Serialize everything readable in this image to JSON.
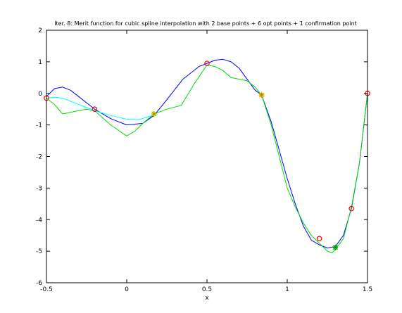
{
  "chart_data": {
    "type": "line",
    "title": "Iter. 8: Merit function for cubic spline interpolation with 2 base points + 6 opt points + 1 confirmation point",
    "xlabel": "x",
    "ylabel": "",
    "xlim": [
      -0.5,
      1.5
    ],
    "ylim": [
      -6,
      2
    ],
    "xticks": [
      "-0.5",
      "0",
      "0.5",
      "1",
      "1.5"
    ],
    "yticks": [
      "2",
      "1",
      "0",
      "-1",
      "-2",
      "-3",
      "-4",
      "-5",
      "-6"
    ],
    "grid": false,
    "legend": "none",
    "series": [
      {
        "color": "#0000ff",
        "x": [
          -0.5,
          -0.45,
          -0.4,
          -0.35,
          -0.3,
          -0.25,
          -0.2,
          -0.1,
          0.0,
          0.1,
          0.17,
          0.25,
          0.35,
          0.45,
          0.5,
          0.55,
          0.6,
          0.65,
          0.7,
          0.75,
          0.8,
          0.84,
          0.9,
          0.95,
          1.0,
          1.05,
          1.1,
          1.15,
          1.2,
          1.25,
          1.3,
          1.35,
          1.4,
          1.45,
          1.5
        ],
        "y": [
          -0.1,
          0.15,
          0.2,
          0.1,
          -0.1,
          -0.3,
          -0.5,
          -0.8,
          -1.0,
          -0.95,
          -0.7,
          -0.2,
          0.45,
          0.85,
          0.95,
          1.05,
          1.08,
          1.0,
          0.8,
          0.45,
          0.1,
          -0.05,
          -0.9,
          -1.8,
          -2.7,
          -3.5,
          -4.2,
          -4.65,
          -4.8,
          -4.9,
          -4.85,
          -4.5,
          -3.65,
          -2.2,
          0.0
        ]
      },
      {
        "color": "#00ffff",
        "x": [
          -0.5,
          -0.45,
          -0.4,
          -0.35,
          -0.3,
          -0.25,
          -0.2,
          -0.1,
          0.0,
          0.08,
          0.17
        ],
        "y": [
          -0.15,
          -0.12,
          -0.15,
          -0.25,
          -0.35,
          -0.45,
          -0.55,
          -0.7,
          -0.82,
          -0.83,
          -0.68
        ]
      },
      {
        "color": "#00dd00",
        "x": [
          -0.5,
          -0.45,
          -0.4,
          -0.35,
          -0.3,
          -0.25,
          -0.2,
          -0.1,
          0.0,
          0.05,
          0.1,
          0.17,
          0.25,
          0.34,
          0.42,
          0.5,
          0.55,
          0.6,
          0.65,
          0.7,
          0.75,
          0.8,
          0.84,
          0.9,
          0.95,
          1.0,
          1.05,
          1.1,
          1.15,
          1.2,
          1.25,
          1.28,
          1.3,
          1.35,
          1.4,
          1.45,
          1.5
        ],
        "y": [
          -0.15,
          -0.35,
          -0.65,
          -0.6,
          -0.55,
          -0.5,
          -0.55,
          -1.0,
          -1.35,
          -1.2,
          -0.95,
          -0.65,
          -0.5,
          -0.38,
          0.3,
          0.9,
          0.85,
          0.72,
          0.5,
          0.45,
          0.4,
          0.2,
          -0.05,
          -1.0,
          -2.0,
          -3.0,
          -3.6,
          -4.1,
          -4.5,
          -4.75,
          -5.0,
          -5.05,
          -4.95,
          -4.6,
          -3.6,
          -2.2,
          0.0
        ]
      }
    ],
    "markers": [
      {
        "x": -0.5,
        "y": -0.15,
        "face": "#ff0000",
        "edge": "#cc0000",
        "style": "circle"
      },
      {
        "x": -0.2,
        "y": -0.5,
        "face": "#ff0000",
        "edge": "#cc0000",
        "style": "circle"
      },
      {
        "x": 0.17,
        "y": -0.65,
        "face": "#ffff00",
        "edge": "#999900",
        "style": "star"
      },
      {
        "x": 0.5,
        "y": 0.95,
        "face": "#ff0000",
        "edge": "#cc0000",
        "style": "circle"
      },
      {
        "x": 0.84,
        "y": -0.05,
        "face": "#ffcc00",
        "edge": "#cc8800",
        "style": "star"
      },
      {
        "x": 1.2,
        "y": -4.6,
        "face": "#ff0000",
        "edge": "#cc0000",
        "style": "circle"
      },
      {
        "x": 1.3,
        "y": -4.88,
        "face": "#33cc33",
        "edge": "#009900",
        "style": "star"
      },
      {
        "x": 1.4,
        "y": -3.65,
        "face": "#ff0000",
        "edge": "#cc0000",
        "style": "circle"
      },
      {
        "x": 1.5,
        "y": 0.0,
        "face": "#ff0000",
        "edge": "#cc0000",
        "style": "circle"
      }
    ]
  }
}
